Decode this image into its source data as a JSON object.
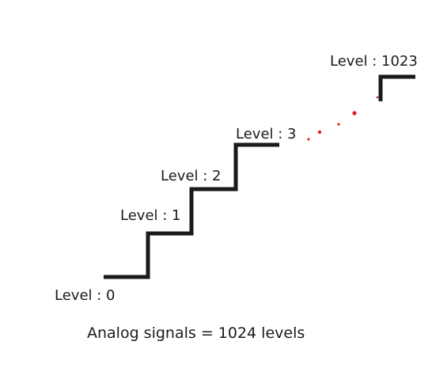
{
  "levels": {
    "level0": "Level : 0",
    "level1": "Level : 1",
    "level2": "Level : 2",
    "level3": "Level : 3",
    "level1023": "Level : 1023"
  },
  "caption": "Analog signals = 1024 levels",
  "colors": {
    "step_line": "#1a1a1a",
    "continuation_dots": "#e02020"
  }
}
